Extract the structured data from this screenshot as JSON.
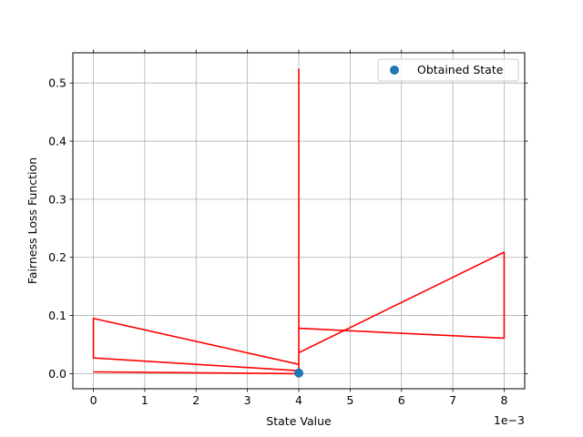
{
  "chart_data": {
    "type": "line",
    "title": "",
    "xlabel": "State Value",
    "ylabel": "Fairness Loss Function",
    "x_offset_label": "1e−3",
    "xlim": [
      -0.0004,
      0.0084
    ],
    "ylim": [
      -0.026,
      0.552
    ],
    "x_ticks": [
      0,
      0.001,
      0.002,
      0.003,
      0.004,
      0.005,
      0.006,
      0.007,
      0.008
    ],
    "x_tick_labels": [
      "0",
      "1",
      "2",
      "3",
      "4",
      "5",
      "6",
      "7",
      "8"
    ],
    "y_ticks": [
      0.0,
      0.1,
      0.2,
      0.3,
      0.4,
      0.5
    ],
    "y_tick_labels": [
      "0.0",
      "0.1",
      "0.2",
      "0.3",
      "0.4",
      "0.5"
    ],
    "grid": true,
    "legend": {
      "position": "upper-right"
    },
    "series": [
      {
        "kind": "line",
        "color": "#ff0000",
        "x": [
          0.004,
          0.004,
          0.004,
          0.008,
          0.008,
          0.004,
          0.004,
          0.0,
          0.0,
          0.004,
          0.004,
          0.0
        ],
        "y": [
          0.525,
          0.002,
          0.078,
          0.061,
          0.209,
          0.036,
          0.016,
          0.095,
          0.027,
          0.005,
          0.0,
          0.003
        ]
      },
      {
        "kind": "scatter",
        "name": "Obtained State",
        "color": "#1f77b4",
        "x": [
          0.004
        ],
        "y": [
          0.001
        ]
      }
    ]
  }
}
